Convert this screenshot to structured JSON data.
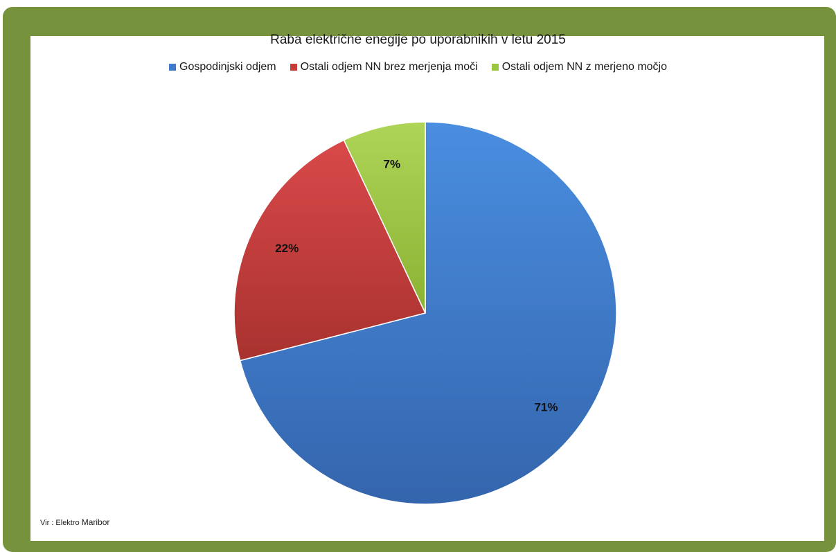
{
  "chart_data": {
    "type": "pie",
    "title": "Raba električne enegije po uporabnikih v letu 2015",
    "categories": [
      "Gospodinjski odjem",
      "Ostali odjem NN brez merjenja moči",
      "Ostali odjem NN z merjeno močjo"
    ],
    "values": [
      71,
      22,
      7
    ],
    "labels": [
      "71%",
      "22%",
      "7%"
    ],
    "colors": [
      "#3f7bcc",
      "#c73c37",
      "#9bc43f"
    ],
    "legend_position": "top"
  },
  "source_prefix": "Vir : Elektro",
  "source_name": "Maribor"
}
